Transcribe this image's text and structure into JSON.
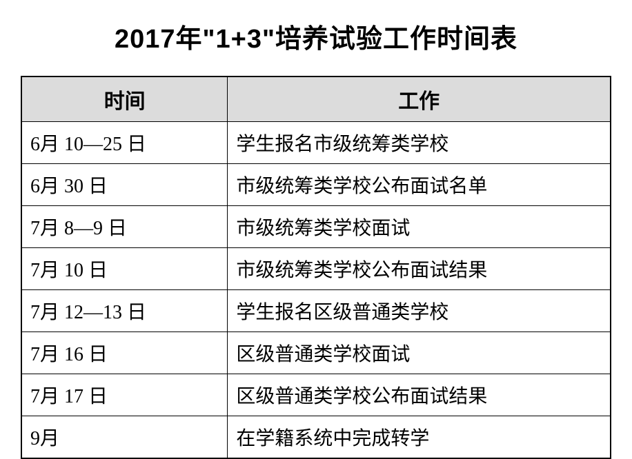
{
  "title": "2017年\"1+3\"培养试验工作时间表",
  "table": {
    "columns": [
      "时间",
      "工作"
    ],
    "rows": [
      [
        "6月 10—25 日",
        "学生报名市级统筹类学校"
      ],
      [
        "6月 30 日",
        "市级统筹类学校公布面试名单"
      ],
      [
        "7月 8—9 日",
        "市级统筹类学校面试"
      ],
      [
        "7月 10 日",
        "市级统筹类学校公布面试结果"
      ],
      [
        "7月 12—13 日",
        "学生报名区级普通类学校"
      ],
      [
        "7月 16 日",
        "区级普通类学校面试"
      ],
      [
        "7月 17 日",
        "区级普通类学校公布面试结果"
      ],
      [
        "9月",
        "在学籍系统中完成转学"
      ]
    ],
    "header_bg": "#dcdcdc",
    "border_color": "#000000",
    "title_fontsize": 38,
    "header_fontsize": 30,
    "cell_fontsize": 28,
    "col_widths": [
      "35%",
      "65%"
    ]
  }
}
